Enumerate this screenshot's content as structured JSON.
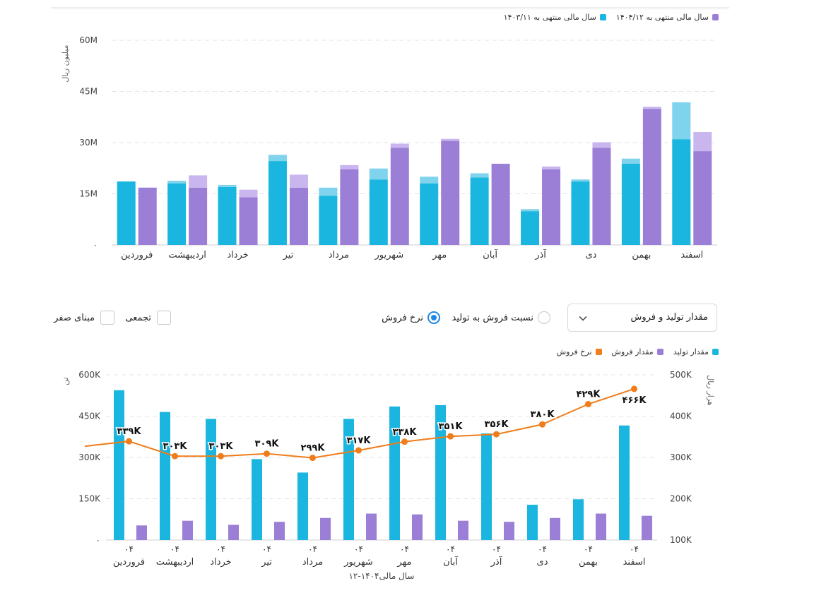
{
  "top_chart": {
    "legend": [
      {
        "label": "سال مالی منتهی به ۱۴۰۴/۱۲",
        "color": "#9b7fd6"
      },
      {
        "label": "سال مالی منتهی به ۱۴۰۳/۱۱",
        "color": "#1ab6df"
      }
    ],
    "y_unit_label": "میلیون ریال",
    "y_ticks": [
      "۰",
      "15M",
      "30M",
      "45M",
      "60M"
    ]
  },
  "controls": {
    "dropdown_label": "مقدار تولید و فروش",
    "radio_ratio": "نسبت فروش به تولید",
    "radio_rate": "نرخ فروش",
    "radio_selected": "rate",
    "check_cumulative": "تجمعی",
    "check_zero_base": "مبنای صفر"
  },
  "bottom_chart": {
    "legend": [
      {
        "label": "مقدار تولید",
        "color": "#1ab6df"
      },
      {
        "label": "مقدار فروش",
        "color": "#9b7fd6"
      },
      {
        "label": "نرخ فروش",
        "color": "#f07c1a"
      }
    ],
    "left_unit_label": "تن",
    "right_unit_label": "هزار ریال",
    "left_ticks": [
      "۰",
      "150K",
      "300K",
      "450K",
      "600K"
    ],
    "right_ticks": [
      "100K",
      "200K",
      "300K",
      "400K",
      "500K"
    ],
    "x_title": "سال مالی۱۴۰۴-۱۲"
  },
  "chart_data": [
    {
      "type": "bar",
      "categories": [
        "فروردین",
        "اردیبهشت",
        "خرداد",
        "تیر",
        "مرداد",
        "شهریور",
        "مهر",
        "آبان",
        "آذر",
        "دی",
        "بهمن",
        "اسفند"
      ],
      "ylim": [
        0,
        60
      ],
      "y_unit": "M",
      "series": [
        {
          "name": "سال مالی منتهی به ۱۴۰۳/۱۱",
          "color": "#1ab6df",
          "light_color": "#7fd3ec",
          "values": [
            18.6,
            18.0,
            17.0,
            24.6,
            14.4,
            19.2,
            18.0,
            19.8,
            9.9,
            18.6,
            23.8,
            31.0
          ],
          "upper_values": [
            0,
            0.8,
            0.6,
            1.8,
            2.4,
            3.2,
            2.0,
            1.2,
            0.6,
            0.6,
            1.5,
            10.8
          ]
        },
        {
          "name": "سال مالی منتهی به ۱۴۰۴/۱۲",
          "color": "#9b7fd6",
          "light_color": "#c9b6ee",
          "values": [
            16.8,
            16.8,
            14.0,
            16.8,
            22.2,
            28.5,
            30.5,
            23.8,
            22.2,
            28.5,
            39.9,
            27.5
          ],
          "upper_values": [
            0,
            3.6,
            2.2,
            3.8,
            1.2,
            1.2,
            0.6,
            0,
            0.8,
            1.6,
            0.6,
            5.6
          ]
        }
      ]
    },
    {
      "type": "bar",
      "categories": [
        "فروردین",
        "اردیبهشت",
        "خرداد",
        "تیر",
        "مرداد",
        "شهریور",
        "مهر",
        "آبان",
        "آذر",
        "دی",
        "بهمن",
        "اسفند"
      ],
      "x_tick_prefix": "۰۴",
      "ylim": [
        0,
        600
      ],
      "y_unit": "K",
      "y2lim": [
        100,
        500
      ],
      "series": [
        {
          "name": "مقدار تولید",
          "color": "#1ab6df",
          "axis": "left",
          "values": [
            544,
            465,
            440,
            294,
            245,
            440,
            485,
            490,
            387,
            128,
            148,
            416
          ]
        },
        {
          "name": "مقدار فروش",
          "color": "#9b7fd6",
          "axis": "left",
          "values": [
            53,
            70,
            55,
            66,
            80,
            96,
            93,
            70,
            66,
            80,
            96,
            88
          ]
        },
        {
          "name": "نرخ فروش",
          "color": "#f07c1a",
          "axis": "right",
          "type": "line",
          "values": [
            339,
            303,
            303,
            309,
            299,
            317,
            338,
            351,
            356,
            380,
            429,
            466
          ],
          "labels": [
            "۳۳۹K",
            "۳۰۳K",
            "۳۰۳K",
            "۳۰۹K",
            "۲۹۹K",
            "۳۱۷K",
            "۳۳۸K",
            "۳۵۱K",
            "۳۵۶K",
            "۳۸۰K",
            "۴۲۹K",
            "۴۶۶K"
          ]
        }
      ]
    }
  ]
}
